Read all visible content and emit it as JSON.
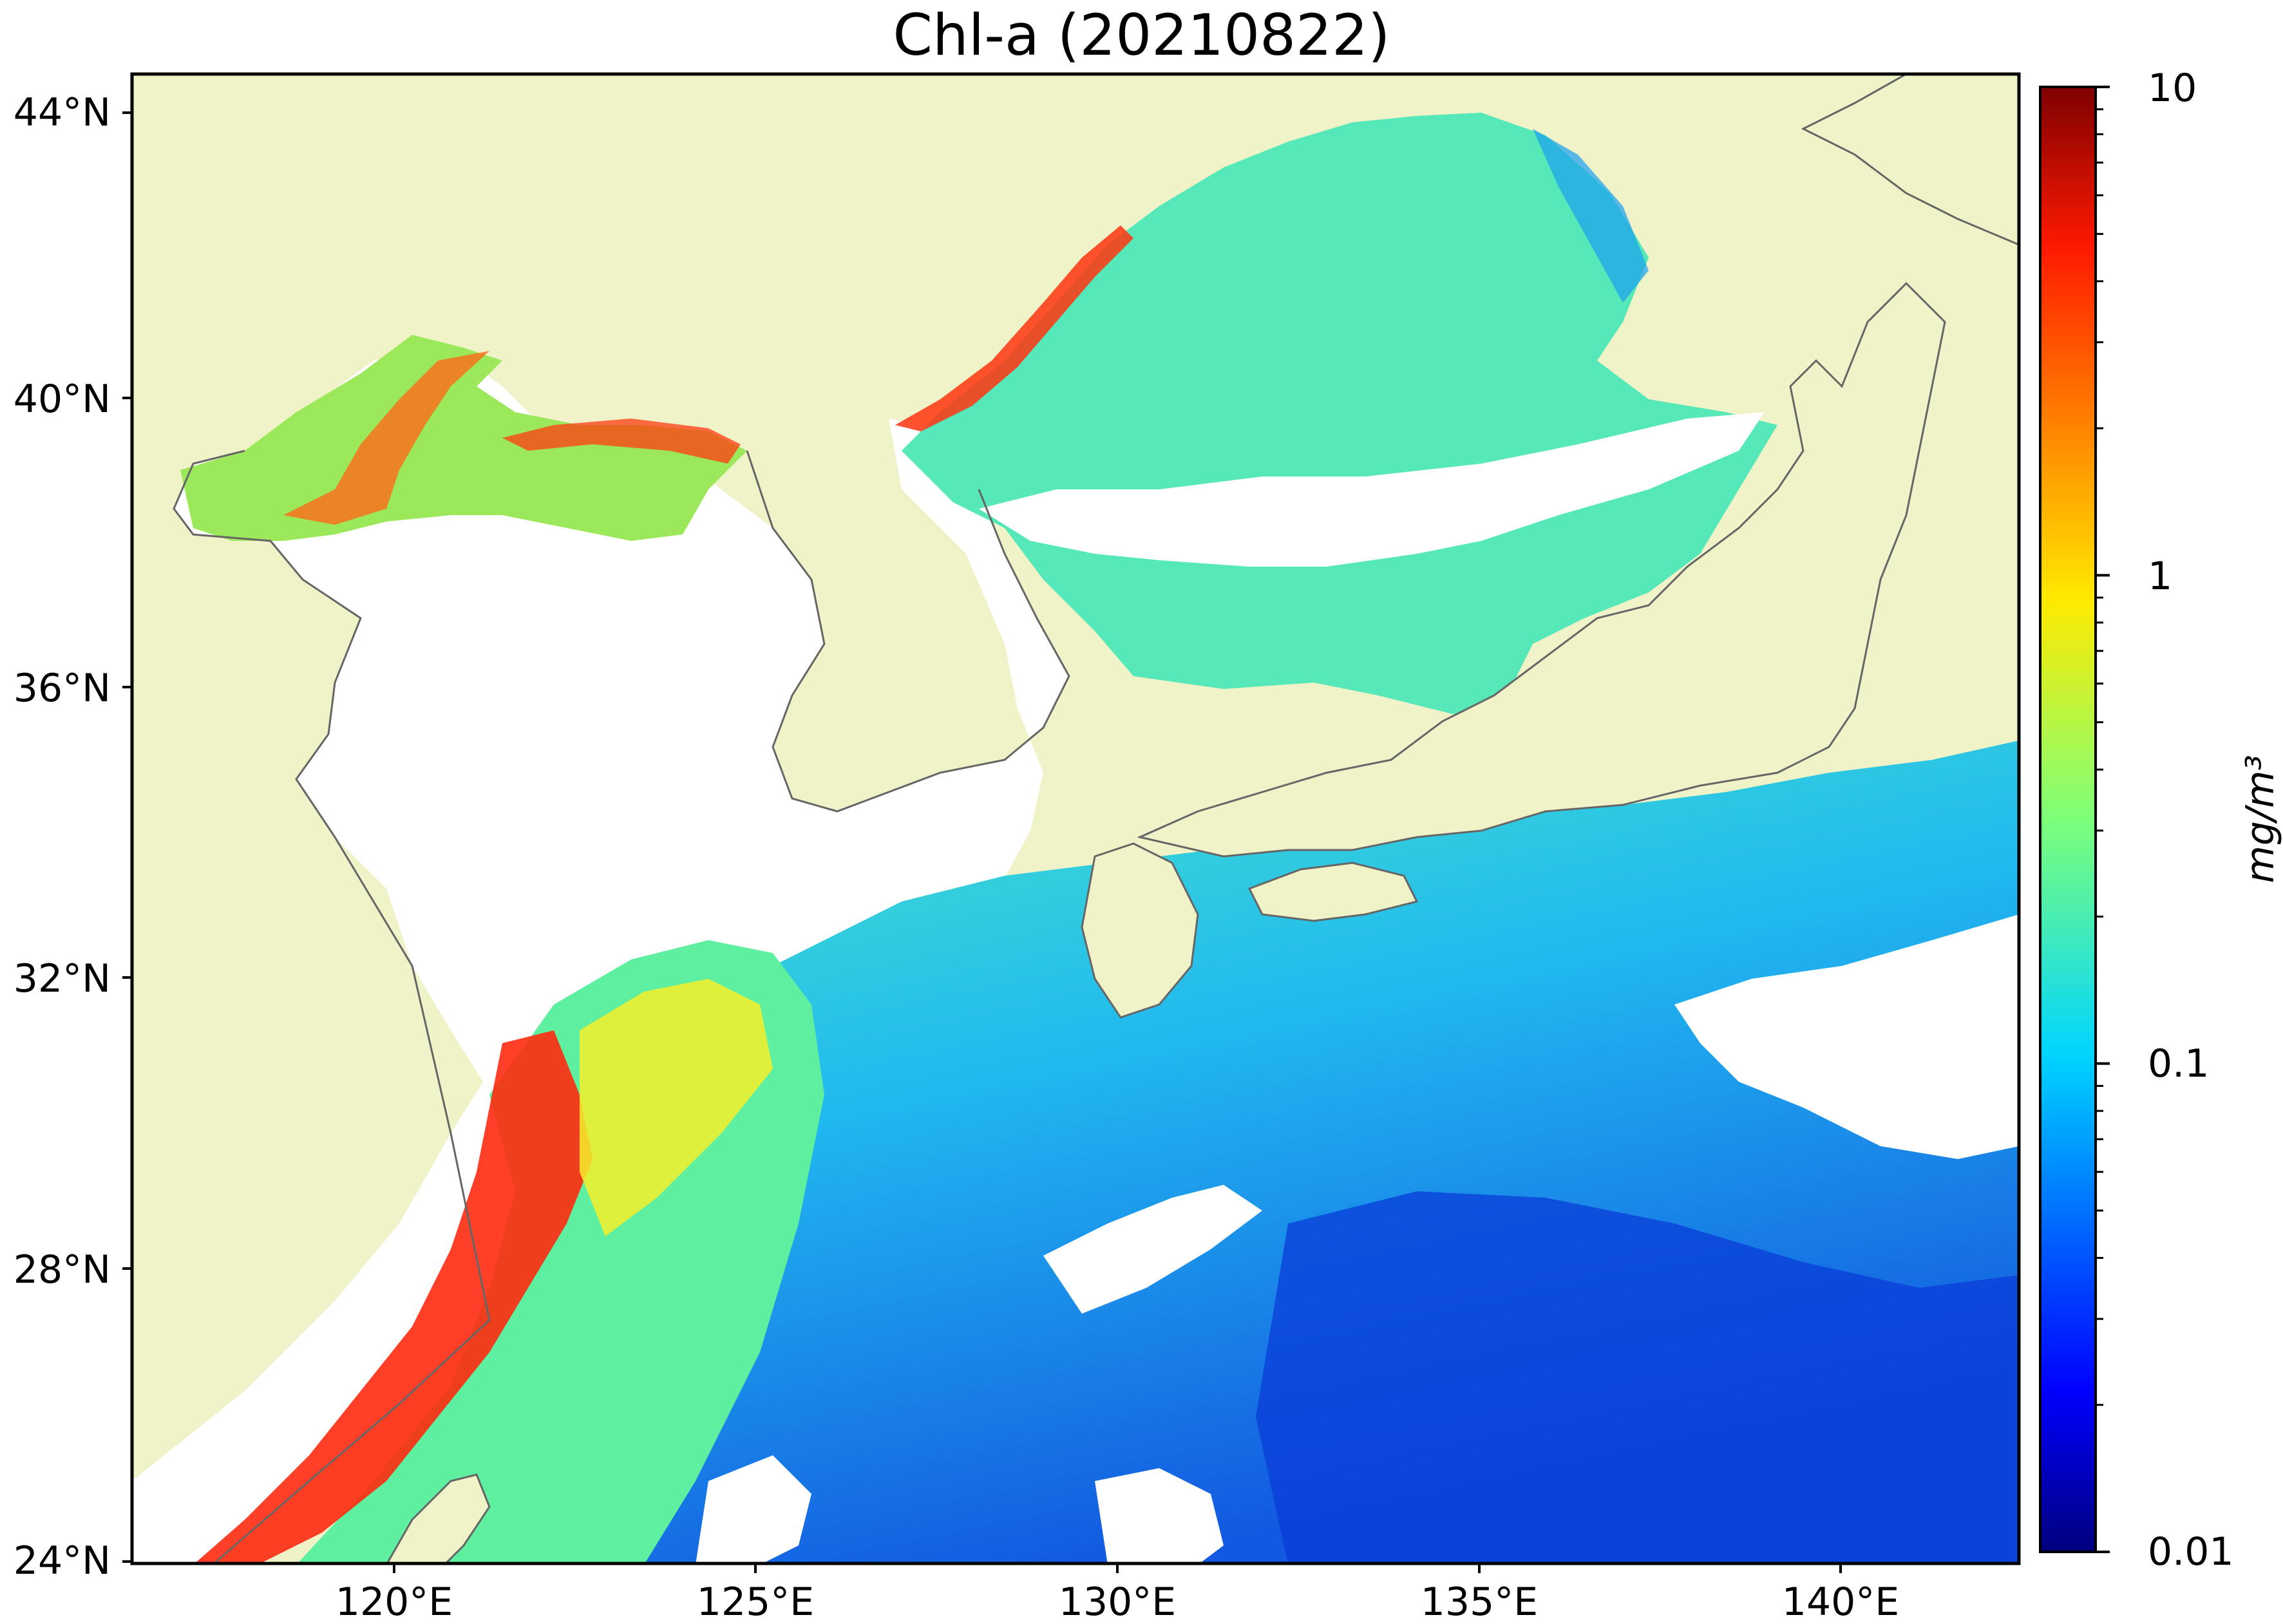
{
  "title": "Chl-a (20210822)",
  "map": {
    "lat_labels": [
      "44°N",
      "40°N",
      "36°N",
      "32°N",
      "28°N",
      "24°N"
    ],
    "lon_labels": [
      "120°E",
      "125°E",
      "130°E",
      "135°E",
      "140°E"
    ],
    "colors": {
      "land": "#f0f3c8",
      "coastline": "#666666",
      "no_data": "#ffffff",
      "frame": "#000000"
    }
  },
  "colorbar": {
    "tick_labels": [
      "10",
      "1",
      "0.1",
      "0.01"
    ],
    "unit": "mg/m³",
    "scale": "log",
    "range": [
      0.01,
      10
    ],
    "colormap": "jet"
  }
}
